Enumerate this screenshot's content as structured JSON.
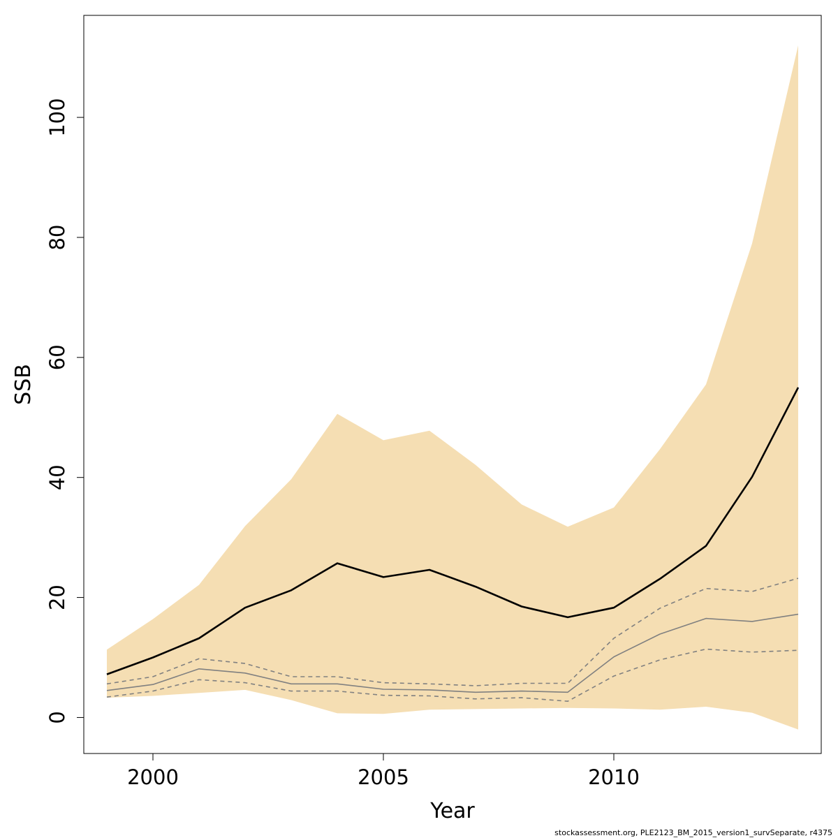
{
  "chart_data": {
    "type": "line",
    "title": "",
    "xlabel": "Year",
    "ylabel": "SSB",
    "xlim": [
      1998.5,
      2014.5
    ],
    "ylim": [
      -6,
      117
    ],
    "x_ticks": [
      2000,
      2005,
      2010
    ],
    "y_ticks": [
      0,
      20,
      40,
      60,
      80,
      100
    ],
    "grid": false,
    "legend": "none",
    "x": [
      1999,
      2000,
      2001,
      2002,
      2003,
      2004,
      2005,
      2006,
      2007,
      2008,
      2009,
      2010,
      2011,
      2012,
      2013,
      2014
    ],
    "band": {
      "color": "#f5deb3",
      "lower": [
        3.3,
        3.6,
        4.1,
        4.6,
        2.9,
        0.7,
        0.6,
        1.3,
        1.4,
        1.5,
        1.6,
        1.5,
        1.3,
        1.8,
        0.8,
        -2.0
      ],
      "upper": [
        11.3,
        16.4,
        22.1,
        31.9,
        39.7,
        50.6,
        46.2,
        47.8,
        42.1,
        35.5,
        31.8,
        35.0,
        44.7,
        55.5,
        79.0,
        112.0
      ]
    },
    "series": [
      {
        "role": "estimate",
        "color": "#000000",
        "style": "solid",
        "values": [
          7.2,
          10.0,
          13.2,
          18.3,
          21.2,
          25.7,
          23.4,
          24.6,
          21.8,
          18.5,
          16.7,
          18.3,
          23.1,
          28.6,
          40.1,
          55.0
        ]
      },
      {
        "role": "reference",
        "color": "#808080",
        "style": "solid",
        "values": [
          4.5,
          5.5,
          8.1,
          7.4,
          5.6,
          5.6,
          4.7,
          4.6,
          4.2,
          4.4,
          4.2,
          10.1,
          13.9,
          16.5,
          16.0,
          17.2
        ]
      },
      {
        "role": "reference-upper",
        "color": "#808080",
        "style": "dashed",
        "values": [
          5.6,
          6.8,
          9.8,
          9.0,
          6.8,
          6.8,
          5.8,
          5.6,
          5.3,
          5.7,
          5.7,
          13.2,
          18.2,
          21.5,
          21.0,
          23.2
        ]
      },
      {
        "role": "reference-lower",
        "color": "#808080",
        "style": "dashed",
        "values": [
          3.4,
          4.4,
          6.3,
          5.8,
          4.4,
          4.4,
          3.7,
          3.6,
          3.1,
          3.3,
          2.7,
          6.9,
          9.6,
          11.4,
          10.9,
          11.2
        ]
      }
    ]
  },
  "footnote": "stockassessment.org, PLE2123_BM_2015_version1_survSeparate, r4375"
}
